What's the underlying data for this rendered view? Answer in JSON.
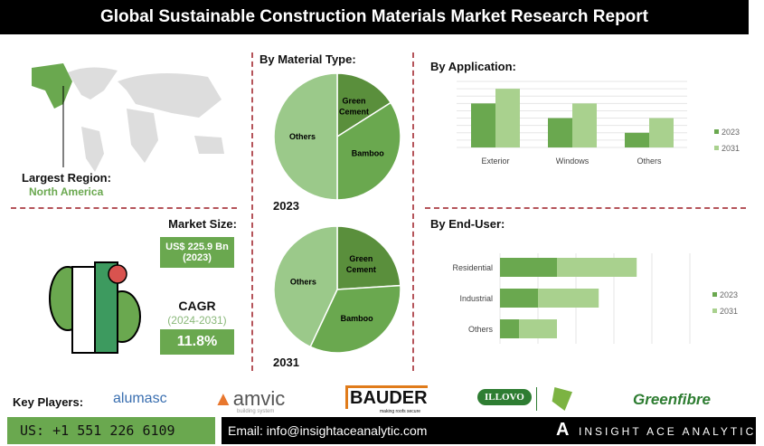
{
  "title": "Global Sustainable Construction Materials Market Research Report",
  "region": {
    "label": "Largest Region:",
    "value": "North America"
  },
  "market": {
    "label": "Market Size:",
    "value": "US$ 225.9 Bn",
    "year": "(2023)"
  },
  "cagr": {
    "label": "CAGR",
    "period": "(2024-2031)",
    "value": "11.8%"
  },
  "key_players": {
    "label": "Key Players:",
    "logos": [
      "alumasc",
      "amvic",
      "BAUDER",
      "ILLOVO",
      "Greenfibre"
    ],
    "amvic_sub": "building system",
    "bauder_sub": "making roofs secure"
  },
  "footer": {
    "phone": "US: +1 551 226 6109",
    "email": "Email: info@insightaceanalytic.com",
    "brand": "INSIGHT ACE ANALYTIC"
  },
  "colors": {
    "dark": "#5a8f3c",
    "mid": "#6aa84f",
    "light": "#9bc98a",
    "lighter": "#a9d18e"
  },
  "chart_data": [
    {
      "type": "pie",
      "title": "By Material Type:",
      "year": "2023",
      "labels": [
        "Green Cement",
        "Bamboo",
        "Others"
      ],
      "values": [
        16,
        34,
        50
      ]
    },
    {
      "type": "pie",
      "year": "2031",
      "labels": [
        "Green Cement",
        "Bamboo",
        "Others"
      ],
      "values": [
        24,
        33,
        43
      ]
    },
    {
      "type": "bar",
      "title": "By Application:",
      "categories": [
        "Exterior",
        "Windows",
        "Others"
      ],
      "series": [
        {
          "name": "2023",
          "values": [
            6,
            4,
            2
          ]
        },
        {
          "name": "2031",
          "values": [
            8,
            6,
            4
          ]
        }
      ],
      "ylim": [
        0,
        9
      ],
      "grid": true,
      "legend": "right"
    },
    {
      "type": "bar",
      "orientation": "horizontal",
      "stacked": true,
      "title": "By End-User:",
      "categories": [
        "Residential",
        "Industrial",
        "Others"
      ],
      "series": [
        {
          "name": "2023",
          "values": [
            1.5,
            1,
            0.5
          ]
        },
        {
          "name": "2031",
          "values": [
            2.1,
            1.6,
            1
          ]
        }
      ],
      "xlim": [
        0,
        5
      ],
      "grid": true,
      "legend": "right"
    }
  ]
}
